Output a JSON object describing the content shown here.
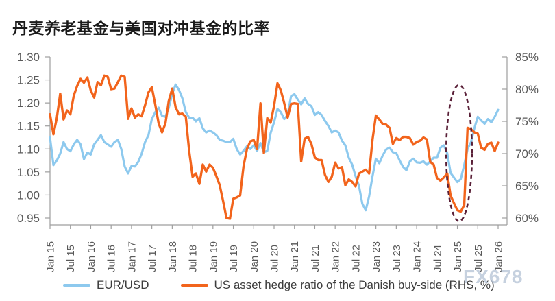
{
  "page": {
    "title": "丹麦养老基金与美国对冲基金的比率",
    "watermark": "FX678"
  },
  "chart_data": {
    "type": "line",
    "title": "丹麦养老基金与美国对冲基金的比率",
    "grid": false,
    "legend_position": "bottom",
    "months_per_tick": 6,
    "x_tick_labels": [
      "Jan 15",
      "Jul 15",
      "Jan 16",
      "Jul 16",
      "Jan 17",
      "Jul 17",
      "Jan 18",
      "Jul 18",
      "Jan 19",
      "Jul 19",
      "Jan 20",
      "Jul 20",
      "Jan 21",
      "Jul 21",
      "Jan 22",
      "Jul 22",
      "Jan 23",
      "Jul 23",
      "Jan 24",
      "Jul 24",
      "Jan 25",
      "Jul 25",
      "Jan 26"
    ],
    "left_axis": {
      "min": 0.95,
      "max": 1.3,
      "ticks": [
        1.3,
        1.25,
        1.2,
        1.15,
        1.1,
        1.05,
        1.0,
        0.95
      ]
    },
    "right_axis": {
      "min": 60,
      "max": 85,
      "ticks": [
        85,
        80,
        75,
        70,
        65,
        60
      ],
      "suffix": "%"
    },
    "series": [
      {
        "name": "EUR/USD",
        "axis": "left",
        "color": "#8DC9EE",
        "start": "Jan 2015",
        "frequency": "monthly",
        "values": [
          1.125,
          1.065,
          1.075,
          1.09,
          1.115,
          1.1,
          1.095,
          1.11,
          1.12,
          1.11,
          1.078,
          1.092,
          1.088,
          1.11,
          1.12,
          1.13,
          1.115,
          1.11,
          1.105,
          1.115,
          1.12,
          1.1,
          1.062,
          1.047,
          1.063,
          1.062,
          1.072,
          1.09,
          1.115,
          1.13,
          1.165,
          1.18,
          1.19,
          1.172,
          1.17,
          1.19,
          1.22,
          1.24,
          1.228,
          1.21,
          1.18,
          1.168,
          1.168,
          1.16,
          1.167,
          1.145,
          1.136,
          1.14,
          1.136,
          1.13,
          1.12,
          1.118,
          1.115,
          1.115,
          1.122,
          1.1,
          1.088,
          1.096,
          1.106,
          1.1,
          1.108,
          1.096,
          1.113,
          1.093,
          1.096,
          1.135,
          1.158,
          1.187,
          1.18,
          1.165,
          1.174,
          1.215,
          1.219,
          1.207,
          1.197,
          1.21,
          1.198,
          1.193,
          1.174,
          1.18,
          1.174,
          1.161,
          1.15,
          1.136,
          1.14,
          1.136,
          1.118,
          1.108,
          1.081,
          1.066,
          1.041,
          1.02,
          0.981,
          0.967,
          0.997,
          1.041,
          1.079,
          1.069,
          1.086,
          1.099,
          1.103,
          1.093,
          1.091,
          1.075,
          1.061,
          1.054,
          1.073,
          1.079,
          1.071,
          1.07,
          1.073,
          1.066,
          1.073,
          1.081,
          1.081,
          1.103,
          1.108,
          1.091,
          1.048,
          1.038,
          1.028,
          1.035,
          1.065,
          1.1,
          1.115,
          1.145,
          1.17,
          1.162,
          1.155,
          1.165,
          1.158,
          1.17,
          1.185
        ]
      },
      {
        "name": "US asset hedge ratio of the Danish buy-side (RHS, %)",
        "axis": "right",
        "color": "#F2641C",
        "start": "Jan 2015",
        "frequency": "monthly",
        "values": [
          76.1,
          73.0,
          75.5,
          79.3,
          75.3,
          76.7,
          76.1,
          79.0,
          80.5,
          81.6,
          81.0,
          81.8,
          79.8,
          78.7,
          81.1,
          80.6,
          82.1,
          81.9,
          80.0,
          80.1,
          81.1,
          82.1,
          81.9,
          75.4,
          77.0,
          75.6,
          76.1,
          75.8,
          77.5,
          79.5,
          80.3,
          77.6,
          74.7,
          73.3,
          74.7,
          78.2,
          80.1,
          77.2,
          76.1,
          76.2,
          75.7,
          70.4,
          66.4,
          66.9,
          65.3,
          68.3,
          67.2,
          68.3,
          67.8,
          66.5,
          65.1,
          62.6,
          60.0,
          59.9,
          63.0,
          63.2,
          63.5,
          68.0,
          70.7,
          71.9,
          72.1,
          70.7,
          77.8,
          70.1,
          75.5,
          74.8,
          77.4,
          80.9,
          79.8,
          77.8,
          75.6,
          77.7,
          77.8,
          77.7,
          68.8,
          72.3,
          72.6,
          71.5,
          69.4,
          69.0,
          69.0,
          66.7,
          65.6,
          66.4,
          68.6,
          67.7,
          67.9,
          65.1,
          66.0,
          65.6,
          64.9,
          66.9,
          67.2,
          67.5,
          66.9,
          72.2,
          75.9,
          75.3,
          74.6,
          74.5,
          74.0,
          71.5,
          72.4,
          72.1,
          72.6,
          72.6,
          72.4,
          71.4,
          71.8,
          72.0,
          72.5,
          72.2,
          68.7,
          68.3,
          66.2,
          65.8,
          66.3,
          66.9,
          63.5,
          62.3,
          61.2,
          61.0,
          62.0,
          74.0,
          73.8,
          73.3,
          73.1,
          70.9,
          70.6,
          71.5,
          71.7,
          70.4,
          71.7
        ]
      }
    ],
    "annotation": {
      "shape": "dashed_ellipse",
      "color": "#5A2038",
      "center_month_index": 120.5,
      "radius_months": 3.8,
      "center_left_axis_value": 1.091,
      "radius_left_axis_value": 0.148
    },
    "axis_text_color": "#595959",
    "axis_line_color": "#9e9e9e"
  }
}
